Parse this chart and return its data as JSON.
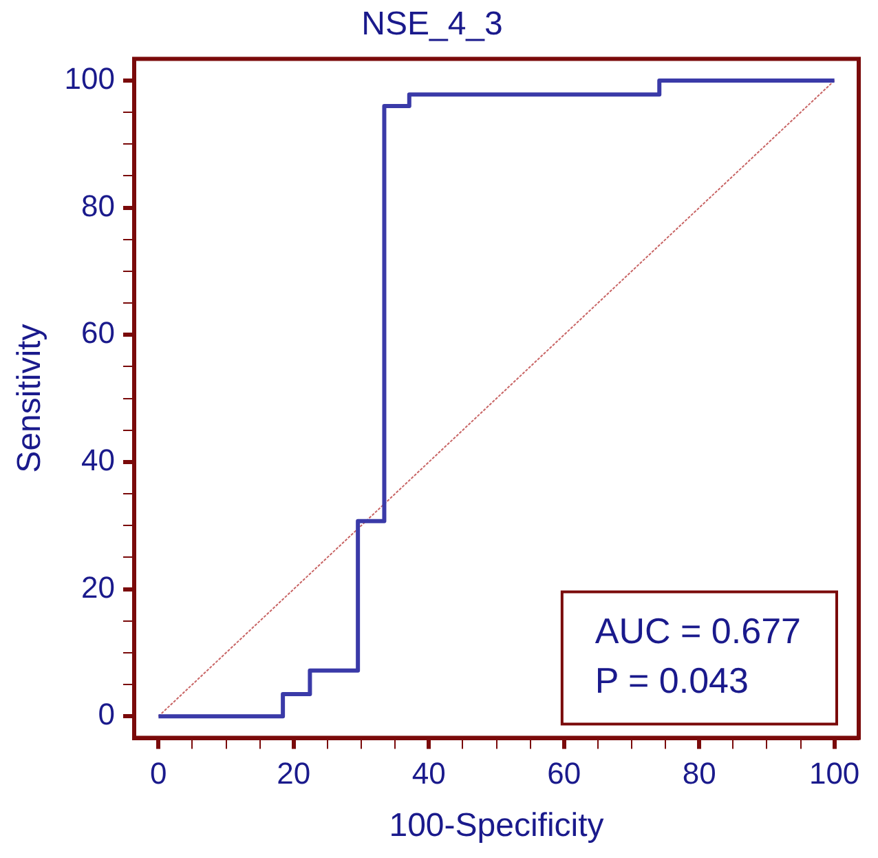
{
  "chart_data": {
    "type": "line",
    "title": "NSE_4_3",
    "xlabel": "100-Specificity",
    "ylabel": "Sensitivity",
    "xlim": [
      -3.6,
      103.6
    ],
    "ylim": [
      -3.4,
      103.4
    ],
    "xticks": [
      0,
      {
        "value": 5,
        "label": null
      },
      {
        "value": 10,
        "label": null
      },
      {
        "value": 15,
        "label": null
      },
      20,
      {
        "value": 25,
        "label": null
      },
      {
        "value": 30,
        "label": null
      },
      {
        "value": 35,
        "label": null
      },
      40,
      {
        "value": 45,
        "label": null
      },
      {
        "value": 50,
        "label": null
      },
      {
        "value": 55,
        "label": null
      },
      60,
      {
        "value": 65,
        "label": null
      },
      {
        "value": 70,
        "label": null
      },
      {
        "value": 75,
        "label": null
      },
      80,
      {
        "value": 85,
        "label": null
      },
      {
        "value": 90,
        "label": null
      },
      {
        "value": 95,
        "label": null
      },
      100
    ],
    "yticks": [
      0,
      {
        "value": 5,
        "label": null
      },
      {
        "value": 10,
        "label": null
      },
      {
        "value": 15,
        "label": null
      },
      20,
      {
        "value": 25,
        "label": null
      },
      {
        "value": 30,
        "label": null
      },
      {
        "value": 35,
        "label": null
      },
      40,
      {
        "value": 45,
        "label": null
      },
      {
        "value": 50,
        "label": null
      },
      {
        "value": 55,
        "label": null
      },
      60,
      {
        "value": 65,
        "label": null
      },
      {
        "value": 70,
        "label": null
      },
      {
        "value": 75,
        "label": null
      },
      80,
      {
        "value": 85,
        "label": null
      },
      {
        "value": 90,
        "label": null
      },
      {
        "value": 95,
        "label": null
      },
      100
    ],
    "grid": false,
    "marker": "none",
    "annotations": [
      "AUC = 0.677",
      "P = 0.043"
    ],
    "series": [
      {
        "type": "step",
        "color": "#3a3aa8",
        "x": [
          0,
          18.4,
          22.4,
          29.5,
          33.4,
          37.1,
          74.1,
          100
        ],
        "values": [
          0,
          3.5,
          7.2,
          30.7,
          96,
          97.8,
          100,
          100
        ]
      },
      {
        "color": "#c86464",
        "line_style": "dotted",
        "x": [
          0,
          100
        ],
        "values": [
          0,
          100
        ]
      }
    ]
  }
}
